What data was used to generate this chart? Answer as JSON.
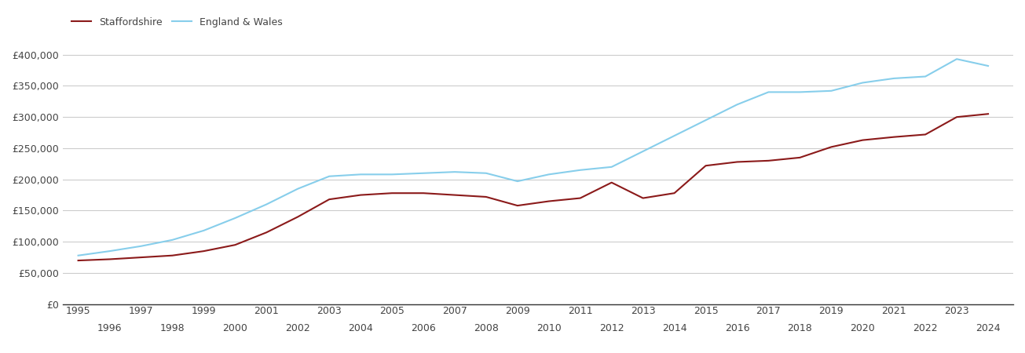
{
  "staffordshire": {
    "years": [
      1995,
      1996,
      1997,
      1998,
      1999,
      2000,
      2001,
      2002,
      2003,
      2004,
      2005,
      2006,
      2007,
      2008,
      2009,
      2010,
      2011,
      2012,
      2013,
      2014,
      2015,
      2016,
      2017,
      2018,
      2019,
      2020,
      2021,
      2022,
      2023,
      2024
    ],
    "values": [
      70000,
      72000,
      75000,
      78000,
      85000,
      95000,
      115000,
      140000,
      168000,
      175000,
      178000,
      178000,
      175000,
      172000,
      158000,
      165000,
      170000,
      195000,
      170000,
      178000,
      222000,
      228000,
      230000,
      235000,
      252000,
      263000,
      268000,
      272000,
      300000,
      305000
    ]
  },
  "england_wales": {
    "years": [
      1995,
      1996,
      1997,
      1998,
      1999,
      2000,
      2001,
      2002,
      2003,
      2004,
      2005,
      2006,
      2007,
      2008,
      2009,
      2010,
      2011,
      2012,
      2013,
      2014,
      2015,
      2016,
      2017,
      2018,
      2019,
      2020,
      2021,
      2022,
      2023,
      2024
    ],
    "values": [
      78000,
      85000,
      93000,
      103000,
      118000,
      138000,
      160000,
      185000,
      205000,
      208000,
      208000,
      210000,
      212000,
      210000,
      197000,
      208000,
      215000,
      220000,
      245000,
      270000,
      295000,
      320000,
      340000,
      340000,
      342000,
      355000,
      362000,
      365000,
      393000,
      382000
    ]
  },
  "staffordshire_color": "#8B1A1A",
  "england_wales_color": "#87CEEB",
  "background_color": "#ffffff",
  "grid_color": "#cccccc",
  "ylim": [
    0,
    420000
  ],
  "yticks": [
    0,
    50000,
    100000,
    150000,
    200000,
    250000,
    300000,
    350000,
    400000
  ],
  "ytick_labels": [
    "£0",
    "£50,000",
    "£100,000",
    "£150,000",
    "£200,000",
    "£250,000",
    "£300,000",
    "£350,000",
    "£400,000"
  ],
  "legend_labels": [
    "Staffordshire",
    "England & Wales"
  ],
  "line_width": 1.5,
  "font_color": "#444444",
  "tick_fontsize": 9
}
